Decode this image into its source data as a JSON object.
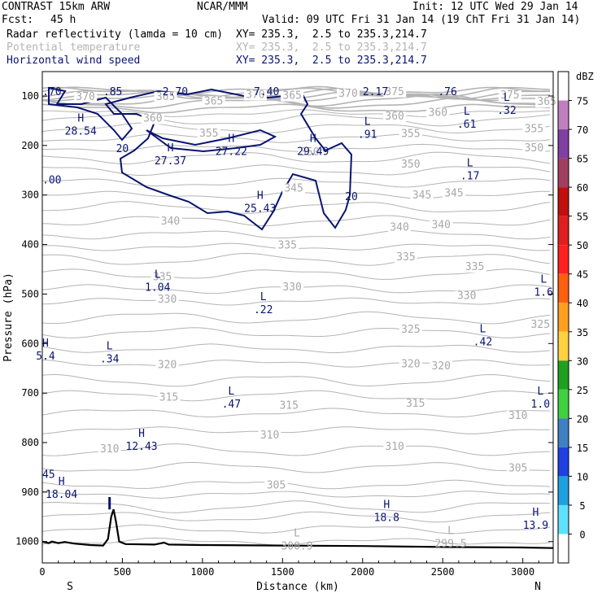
{
  "header": {
    "model": "CONTRAST 15km ARW",
    "org": "NCAR/MMM",
    "init": "Init: 12 UTC Wed 29 Jan 14",
    "fcst_label": "Fcst:",
    "fcst_value": "45 h",
    "valid": "Valid: 09 UTC Fri 31 Jan 14 (19 ChT Fri 31 Jan 14)",
    "fields": [
      {
        "name": "Radar reflectivity (lamda = 10 cm)",
        "xy": "XY= 235.3,  2.5 to 235.3,214.7",
        "color": "#000000"
      },
      {
        "name": "Potential temperature",
        "xy": "XY= 235.3,  2.5 to 235.3,214.7",
        "color": "#b4b4b4"
      },
      {
        "name": "Horizontal wind speed",
        "xy": "XY= 235.3,  2.5 to 235.3,214.7",
        "color": "#0a1470"
      }
    ]
  },
  "chart_data": {
    "type": "contour",
    "xlabel": "Distance (km)",
    "ylabel": "Pressure (hPa)",
    "xlim": [
      0,
      3200
    ],
    "ylim": [
      1050,
      60
    ],
    "x_ticks": [
      "0",
      "500",
      "1000",
      "1500",
      "2000",
      "2500",
      "3000"
    ],
    "x_tick_values": [
      0,
      500,
      1000,
      1500,
      2000,
      2500,
      3000
    ],
    "y_ticks": [
      "100",
      "200",
      "300",
      "400",
      "500",
      "600",
      "700",
      "800",
      "900",
      "1000"
    ],
    "y_tick_values": [
      100,
      200,
      300,
      400,
      500,
      600,
      700,
      800,
      900,
      1000
    ],
    "x_end_labels": {
      "left": "S",
      "right": "N"
    },
    "potential_temperature_labels": [
      {
        "text": "370",
        "x": 270,
        "p": 108
      },
      {
        "text": "365",
        "x": 770,
        "p": 108
      },
      {
        "text": "370",
        "x": 1330,
        "p": 104
      },
      {
        "text": "365",
        "x": 1560,
        "p": 106
      },
      {
        "text": "370",
        "x": 1910,
        "p": 102
      },
      {
        "text": "375",
        "x": 2200,
        "p": 98
      },
      {
        "text": "375",
        "x": 2920,
        "p": 105
      },
      {
        "text": "365",
        "x": 1070,
        "p": 117
      },
      {
        "text": "360",
        "x": 690,
        "p": 152
      },
      {
        "text": "360",
        "x": 2200,
        "p": 148
      },
      {
        "text": "360",
        "x": 2470,
        "p": 140
      },
      {
        "text": "365",
        "x": 3150,
        "p": 118
      },
      {
        "text": "355",
        "x": 1040,
        "p": 182
      },
      {
        "text": "355",
        "x": 2300,
        "p": 183
      },
      {
        "text": "355",
        "x": 3070,
        "p": 173
      },
      {
        "text": "350",
        "x": 1670,
        "p": 220
      },
      {
        "text": "350",
        "x": 2300,
        "p": 245
      },
      {
        "text": "350",
        "x": 3070,
        "p": 212
      },
      {
        "text": "345",
        "x": 1570,
        "p": 293
      },
      {
        "text": "345",
        "x": 2370,
        "p": 307
      },
      {
        "text": "345",
        "x": 2570,
        "p": 303
      },
      {
        "text": "340",
        "x": 800,
        "p": 360
      },
      {
        "text": "340",
        "x": 2230,
        "p": 372
      },
      {
        "text": "340",
        "x": 2490,
        "p": 367
      },
      {
        "text": "335",
        "x": 1530,
        "p": 408
      },
      {
        "text": "335",
        "x": 2270,
        "p": 432
      },
      {
        "text": "335",
        "x": 2700,
        "p": 452
      },
      {
        "text": "335",
        "x": 750,
        "p": 472
      },
      {
        "text": "330",
        "x": 1560,
        "p": 493
      },
      {
        "text": "330",
        "x": 780,
        "p": 517
      },
      {
        "text": "330",
        "x": 2650,
        "p": 510
      },
      {
        "text": "325",
        "x": 2300,
        "p": 578
      },
      {
        "text": "325",
        "x": 3110,
        "p": 568
      },
      {
        "text": "320",
        "x": 780,
        "p": 650
      },
      {
        "text": "320",
        "x": 2300,
        "p": 648
      },
      {
        "text": "320",
        "x": 2490,
        "p": 652
      },
      {
        "text": "315",
        "x": 790,
        "p": 715
      },
      {
        "text": "315",
        "x": 1540,
        "p": 732
      },
      {
        "text": "315",
        "x": 2330,
        "p": 728
      },
      {
        "text": "310",
        "x": 2970,
        "p": 752
      },
      {
        "text": "310",
        "x": 1420,
        "p": 792
      },
      {
        "text": "310",
        "x": 2200,
        "p": 815
      },
      {
        "text": "310",
        "x": 420,
        "p": 820
      },
      {
        "text": "305",
        "x": 2970,
        "p": 858
      },
      {
        "text": "305",
        "x": 1460,
        "p": 893
      }
    ],
    "radar_reflectivity_contour_label": {
      "text": "20",
      "x": 1910,
      "p": 300
    },
    "wind_contour_labels": [
      {
        "text": "20",
        "x": 500,
        "p": 213
      },
      {
        "text": "20",
        "x": 1930,
        "p": 310
      }
    ],
    "wind_speed_extrema": [
      {
        "kind": "",
        "value": ".70",
        "x": 60,
        "p": 82
      },
      {
        "kind": "",
        "value": ".85",
        "x": 440,
        "p": 82
      },
      {
        "kind": "",
        "value": "2.70",
        "x": 830,
        "p": 82
      },
      {
        "kind": "",
        "value": "7.40",
        "x": 1400,
        "p": 82
      },
      {
        "kind": "",
        "value": "2.17",
        "x": 2080,
        "p": 82
      },
      {
        "kind": "",
        "value": ".76",
        "x": 2530,
        "p": 82
      },
      {
        "kind": "L",
        "value": ".32",
        "x": 2900,
        "p": 120
      },
      {
        "kind": "H",
        "value": "28.54",
        "x": 240,
        "p": 162
      },
      {
        "kind": "L",
        "value": ".61",
        "x": 2650,
        "p": 148
      },
      {
        "kind": "L",
        "value": ".91",
        "x": 2030,
        "p": 168
      },
      {
        "kind": "H",
        "value": "27.37",
        "x": 800,
        "p": 222
      },
      {
        "kind": "H",
        "value": "27.22",
        "x": 1180,
        "p": 203
      },
      {
        "kind": "H",
        "value": "29.49",
        "x": 1690,
        "p": 203
      },
      {
        "kind": "",
        "value": ".00",
        "x": 0,
        "p": 260
      },
      {
        "kind": "L",
        "value": ".17",
        "x": 2670,
        "p": 252
      },
      {
        "kind": "H",
        "value": "25.43",
        "x": 1360,
        "p": 318
      },
      {
        "kind": "L",
        "value": "1.04",
        "x": 720,
        "p": 477
      },
      {
        "kind": "L",
        "value": ".22",
        "x": 1380,
        "p": 522
      },
      {
        "kind": "L",
        "value": "1.6",
        "x": 3130,
        "p": 487
      },
      {
        "kind": "L",
        "value": ".42",
        "x": 2750,
        "p": 587
      },
      {
        "kind": "H",
        "value": "5.4",
        "x": 20,
        "p": 616
      },
      {
        "kind": "L",
        "value": ".34",
        "x": 420,
        "p": 622
      },
      {
        "kind": "L",
        "value": ".47",
        "x": 1180,
        "p": 713
      },
      {
        "kind": "L",
        "value": "1.0",
        "x": 3110,
        "p": 713
      },
      {
        "kind": "H",
        "value": "12.43",
        "x": 620,
        "p": 798
      },
      {
        "kind": "",
        "value": "45",
        "x": 0,
        "p": 855
      },
      {
        "kind": "H",
        "value": "18.04",
        "x": 120,
        "p": 895
      },
      {
        "kind": "H",
        "value": "18.8",
        "x": 2150,
        "p": 942
      },
      {
        "kind": "H",
        "value": "13.9",
        "x": 3080,
        "p": 958
      }
    ],
    "potential_temperature_extrema": [
      {
        "kind": "L",
        "value": "300.9",
        "x": 1590,
        "p": 1000
      },
      {
        "kind": "L",
        "value": "299.5",
        "x": 2550,
        "p": 995
      }
    ],
    "colorbar": {
      "unit": "dBZ",
      "levels": [
        "75",
        "70",
        "65",
        "60",
        "55",
        "50",
        "45",
        "40",
        "35",
        "30",
        "25",
        "20",
        "15",
        "10",
        "5",
        "0"
      ],
      "colors": [
        "#ffffff",
        "#c080c0",
        "#8040a0",
        "#a04060",
        "#c01010",
        "#e02020",
        "#ff2020",
        "#ff6010",
        "#ffa020",
        "#ffd040",
        "#20a020",
        "#40d040",
        "#4080c0",
        "#2040e0",
        "#20a0e0",
        "#60e0ff",
        "#ffffff"
      ]
    }
  }
}
